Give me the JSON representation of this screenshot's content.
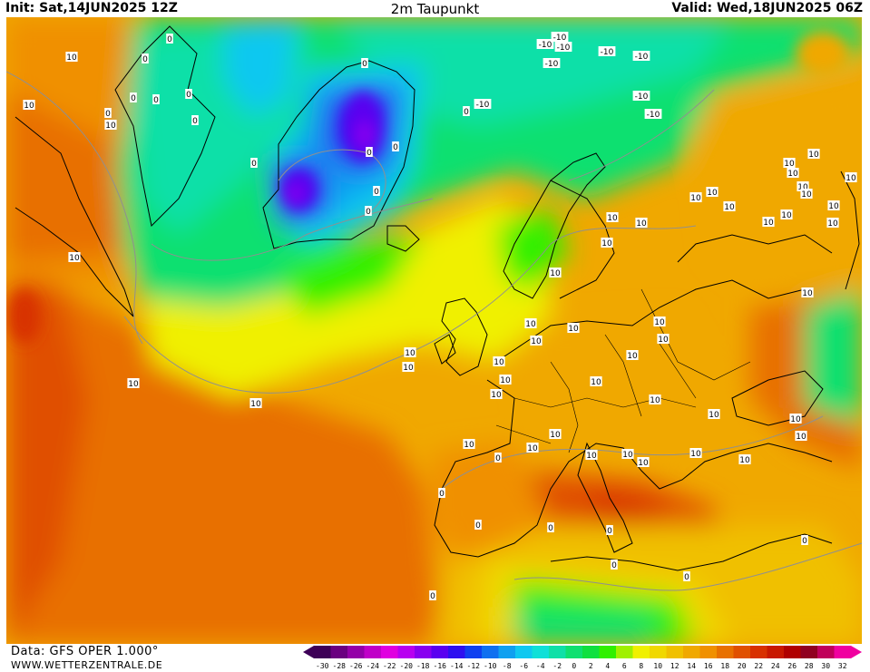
{
  "header": {
    "init": "Init: Sat,14JUN2025 12Z",
    "title": "2m Taupunkt",
    "valid": "Valid: Wed,18JUN2025 06Z"
  },
  "footer": {
    "source": "Data: GFS OPER 1.000°",
    "website": "WWW.WETTERZENTRALE.DE"
  },
  "legend": {
    "labels": [
      "-30",
      "-28",
      "-26",
      "-24",
      "-22",
      "-20",
      "-18",
      "-16",
      "-14",
      "-12",
      "-10",
      "-8",
      "-6",
      "-4",
      "-2",
      "0",
      "2",
      "4",
      "6",
      "8",
      "10",
      "12",
      "14",
      "16",
      "18",
      "20",
      "22",
      "24",
      "26",
      "28",
      "30",
      "32"
    ],
    "colors": [
      "#3d0057",
      "#6a0080",
      "#9400a8",
      "#c000c8",
      "#e000e0",
      "#b800f0",
      "#8800f0",
      "#5a00f0",
      "#2e10f0",
      "#1040f0",
      "#1070f0",
      "#10a0f0",
      "#10c8f0",
      "#10e0d8",
      "#10e0a8",
      "#10e070",
      "#10e040",
      "#30f000",
      "#a0f000",
      "#f0f000",
      "#f0d800",
      "#f0c000",
      "#f0a800",
      "#f09000",
      "#e87000",
      "#e05000",
      "#d83000",
      "#c81800",
      "#b00000",
      "#900020",
      "#c0005a",
      "#f000a0"
    ]
  },
  "map": {
    "contour_labels": [
      {
        "text": "10"
      },
      {
        "text": "10"
      },
      {
        "text": "10"
      },
      {
        "text": "10"
      },
      {
        "text": "10"
      },
      {
        "text": "10"
      },
      {
        "text": "10"
      },
      {
        "text": "10"
      },
      {
        "text": "10"
      },
      {
        "text": "10"
      },
      {
        "text": "10"
      },
      {
        "text": "10"
      },
      {
        "text": "10"
      },
      {
        "text": "10"
      },
      {
        "text": "10"
      },
      {
        "text": "10"
      },
      {
        "text": "10"
      },
      {
        "text": "10"
      },
      {
        "text": "10"
      },
      {
        "text": "10"
      },
      {
        "text": "10"
      },
      {
        "text": "10"
      },
      {
        "text": "10"
      },
      {
        "text": "10"
      },
      {
        "text": "10"
      },
      {
        "text": "10"
      },
      {
        "text": "10"
      },
      {
        "text": "10"
      },
      {
        "text": "10"
      },
      {
        "text": "10"
      },
      {
        "text": "10"
      },
      {
        "text": "10"
      },
      {
        "text": "10"
      },
      {
        "text": "10"
      },
      {
        "text": "10"
      },
      {
        "text": "10"
      },
      {
        "text": "10"
      },
      {
        "text": "10"
      },
      {
        "text": "10"
      },
      {
        "text": "10"
      },
      {
        "text": "10"
      },
      {
        "text": "10"
      },
      {
        "text": "10"
      },
      {
        "text": "10"
      },
      {
        "text": "10"
      },
      {
        "text": "10"
      },
      {
        "text": "10"
      },
      {
        "text": "10"
      },
      {
        "text": "0"
      },
      {
        "text": "0"
      },
      {
        "text": "0"
      },
      {
        "text": "0"
      },
      {
        "text": "0"
      },
      {
        "text": "0"
      },
      {
        "text": "0"
      },
      {
        "text": "0"
      },
      {
        "text": "0"
      },
      {
        "text": "0"
      },
      {
        "text": "0"
      },
      {
        "text": "0"
      },
      {
        "text": "0"
      },
      {
        "text": "0"
      },
      {
        "text": "0"
      },
      {
        "text": "0"
      },
      {
        "text": "0"
      },
      {
        "text": "0"
      },
      {
        "text": "0"
      },
      {
        "text": "0"
      },
      {
        "text": "0"
      },
      {
        "text": "0"
      },
      {
        "text": "0"
      },
      {
        "text": "-10"
      },
      {
        "text": "-10"
      },
      {
        "text": "-10"
      },
      {
        "text": "-10"
      },
      {
        "text": "-10"
      },
      {
        "text": "-10"
      },
      {
        "text": "-10"
      },
      {
        "text": "-10"
      },
      {
        "text": "-10"
      }
    ]
  }
}
